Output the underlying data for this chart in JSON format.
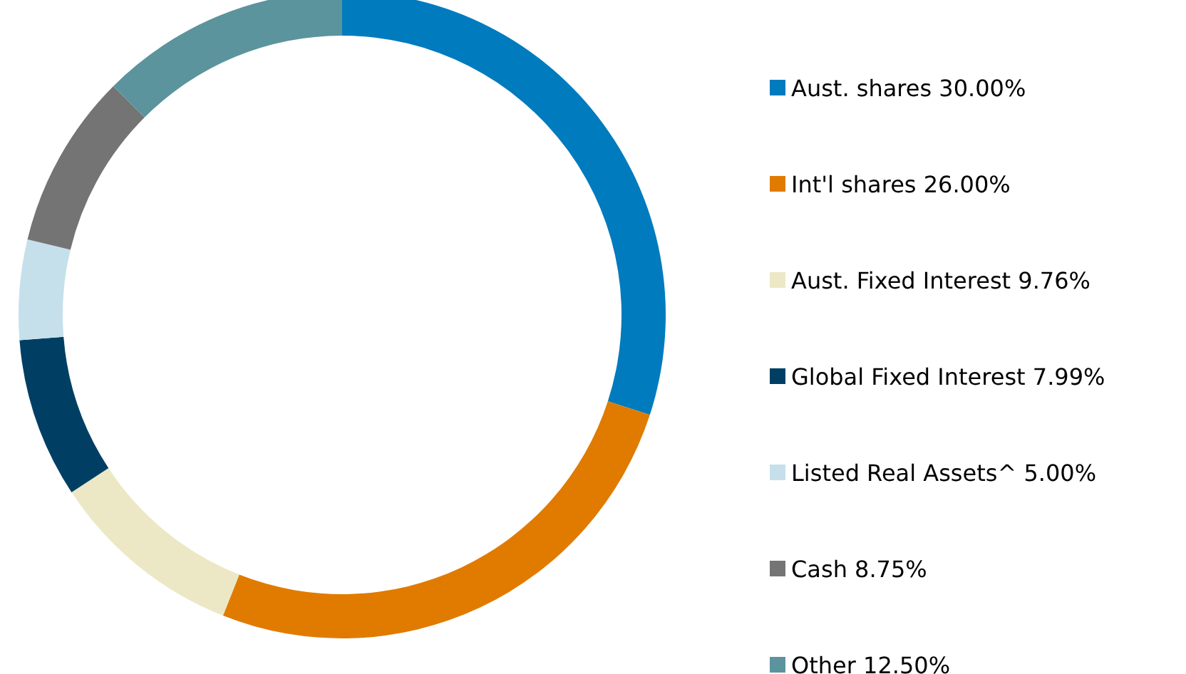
{
  "chart_data": {
    "type": "donut",
    "categories": [
      "Aust. shares",
      "Int'l shares",
      "Aust. Fixed Interest",
      "Global Fixed Interest",
      "Listed Real Assets^",
      "Cash",
      "Other"
    ],
    "values": [
      30,
      26,
      9.76,
      7.99,
      5,
      8.75,
      12.5
    ],
    "value_labels": [
      "30.00%",
      "26.00%",
      "9.76%",
      "7.99%",
      "5.00%",
      "8.75%",
      "12.50%"
    ],
    "colors": [
      "#007bbd",
      "#e07b00",
      "#ece8c6",
      "#003f63",
      "#c5e0ea",
      "#747474",
      "#5b949c"
    ],
    "legend": "right"
  }
}
